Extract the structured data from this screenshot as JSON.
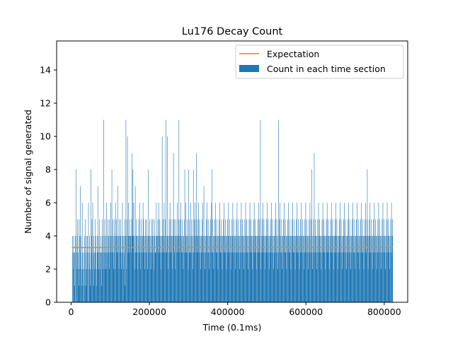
{
  "chart_data": {
    "type": "bar",
    "title": "Lu176 Decay Count",
    "xlabel": "Time (0.1ms)",
    "ylabel": "Number of signal generated",
    "xlim": [
      -37000,
      860000
    ],
    "ylim": [
      0,
      15.75
    ],
    "xticks": [
      0,
      200000,
      400000,
      600000,
      800000
    ],
    "yticks": [
      0,
      2,
      4,
      6,
      8,
      10,
      12,
      14
    ],
    "xtick_labels": [
      "0",
      "200000",
      "400000",
      "600000",
      "800000"
    ],
    "ytick_labels": [
      "0",
      "2",
      "4",
      "6",
      "8",
      "10",
      "12",
      "14"
    ],
    "grid": false,
    "legend": {
      "position": "top-right",
      "entries": [
        "Expectation",
        "Count in each time section"
      ]
    },
    "series": [
      {
        "name": "Count in each time section",
        "type": "bar",
        "color": "#1f77b4",
        "bin_width": 1000,
        "x_start": 3000,
        "x_end": 822000,
        "values": [
          4,
          3,
          2,
          4,
          3,
          1,
          3,
          4,
          0,
          8,
          3,
          2,
          4,
          5,
          2,
          3,
          1,
          5,
          4,
          2,
          7,
          3,
          4,
          2,
          1,
          6,
          3,
          2,
          0,
          3,
          1,
          4,
          2,
          5,
          3,
          1,
          4,
          2,
          4,
          3,
          0,
          6,
          2,
          3,
          4,
          1,
          2,
          8,
          3,
          4,
          5,
          2,
          6,
          3,
          1,
          4,
          3,
          2,
          5,
          3,
          4,
          2,
          1,
          3,
          4,
          7,
          3,
          2,
          4,
          5,
          3,
          2,
          3,
          4,
          1,
          3,
          5,
          4,
          2,
          3,
          11,
          4,
          3,
          5,
          2,
          4,
          3,
          6,
          2,
          3,
          4,
          5,
          3,
          4,
          2,
          5,
          3,
          4,
          6,
          4,
          3,
          8,
          4,
          5,
          3,
          2,
          4,
          5,
          3,
          4,
          2,
          6,
          4,
          5,
          3,
          4,
          7,
          3,
          4,
          2,
          5,
          4,
          3,
          4,
          5,
          2,
          3,
          4,
          6,
          3,
          4,
          2,
          4,
          3,
          5,
          1,
          4,
          3,
          2,
          4,
          5,
          10,
          3,
          4,
          6,
          4,
          3,
          5,
          4,
          4,
          4,
          3,
          5,
          9,
          4,
          8,
          4,
          6,
          3,
          4,
          2,
          7,
          3,
          4,
          5,
          3,
          4,
          2,
          4,
          3,
          5,
          4,
          6,
          3,
          4,
          2,
          5,
          3,
          4,
          3,
          4,
          6,
          5,
          3,
          4,
          2,
          4,
          5,
          3,
          4,
          5,
          3,
          4,
          2,
          6,
          4,
          3,
          4,
          5,
          4,
          3,
          2,
          4,
          5,
          3,
          4,
          5,
          3,
          4,
          2,
          5,
          4,
          3,
          3,
          4,
          6,
          4,
          3,
          4,
          5,
          4,
          6,
          3,
          4,
          5,
          3,
          4,
          2,
          4,
          3,
          10,
          4,
          5,
          3,
          4,
          6,
          3,
          4,
          5,
          3,
          11,
          4,
          3,
          5,
          4,
          2,
          4,
          3,
          5,
          4,
          6,
          3,
          4,
          5,
          3,
          4,
          2,
          4,
          5,
          3,
          4,
          5,
          3,
          4,
          2,
          5,
          4,
          3,
          4,
          6,
          3,
          4,
          5,
          11,
          4,
          3,
          5,
          4,
          6,
          3,
          4,
          5,
          3,
          4,
          2,
          4,
          3,
          5,
          4,
          3,
          4,
          6,
          3,
          4,
          5,
          3,
          4,
          2,
          4,
          3,
          5,
          3,
          4,
          6,
          3,
          4,
          5,
          3,
          4,
          2,
          8,
          3,
          5,
          4,
          6,
          3,
          4,
          5,
          9,
          4,
          3,
          5,
          4,
          6,
          3,
          4,
          5,
          3,
          4,
          2,
          4,
          3,
          5,
          4,
          6,
          3,
          4,
          7,
          3,
          4,
          2,
          4,
          3,
          5,
          4,
          6,
          3,
          4,
          5,
          3,
          4,
          2,
          4,
          3,
          5,
          4,
          6,
          3,
          8,
          5,
          3,
          4,
          2,
          4,
          3,
          5,
          4,
          6,
          3,
          4,
          5,
          3,
          4,
          2,
          4,
          3,
          5,
          4,
          6,
          3,
          4,
          5,
          3,
          4,
          2,
          4,
          3,
          5,
          4,
          6,
          3,
          4,
          5,
          3,
          4,
          2,
          4,
          3,
          5,
          4,
          6,
          3,
          4,
          5,
          3,
          4,
          2,
          4,
          3,
          5,
          4,
          6,
          3,
          4,
          5,
          3,
          4,
          2,
          4,
          3,
          5,
          4,
          6,
          3,
          4,
          5,
          3,
          4,
          2,
          4,
          3,
          5,
          4,
          6,
          3,
          4,
          5,
          3,
          4,
          2,
          4,
          3,
          5,
          4,
          6,
          3,
          4,
          5,
          3,
          4,
          2,
          4,
          3,
          5,
          4,
          6,
          3,
          4,
          5,
          3,
          4,
          2,
          4,
          3,
          5,
          4,
          6,
          3,
          4,
          5,
          3,
          4,
          2,
          4,
          3,
          5,
          4,
          6,
          3,
          4,
          5,
          3,
          4,
          2,
          4,
          3,
          5,
          4,
          6,
          3,
          4,
          5,
          3,
          4,
          2,
          4,
          3,
          5,
          4,
          6,
          3,
          4,
          5,
          3,
          4,
          2,
          4,
          3,
          5,
          4,
          6,
          3,
          4,
          5,
          3,
          4,
          2,
          4,
          3,
          5,
          4,
          6,
          3,
          4,
          5,
          3,
          4,
          2,
          4,
          3,
          5,
          4,
          6,
          3,
          4,
          5,
          3,
          4,
          2,
          4,
          3,
          5,
          4,
          6,
          3,
          4,
          5,
          3,
          4,
          2,
          4,
          3,
          5,
          4,
          6,
          3,
          4,
          5,
          3,
          4,
          2,
          4,
          3,
          5,
          4,
          6,
          3,
          4,
          5,
          3,
          4,
          2,
          4,
          3,
          5,
          4,
          6,
          3,
          4,
          5,
          3,
          4,
          2,
          4,
          3,
          5,
          4,
          6,
          3,
          4,
          5,
          3,
          4,
          2,
          4,
          3,
          5,
          4,
          6,
          3,
          4,
          5,
          3,
          4,
          2,
          4,
          3,
          5,
          4,
          6,
          3,
          4,
          5,
          3,
          4,
          2,
          4,
          3,
          5,
          4,
          6,
          3,
          4,
          5,
          3,
          4,
          2,
          4,
          3,
          5,
          4,
          6,
          3,
          4,
          5,
          3,
          4,
          2,
          4,
          3,
          5,
          4,
          6,
          3,
          4,
          5,
          3,
          4,
          2,
          4,
          3,
          5,
          4,
          6,
          3,
          4,
          5,
          3,
          4,
          2,
          4,
          3,
          5,
          4,
          6,
          3,
          4,
          5,
          3,
          4,
          2,
          4,
          3,
          5,
          4,
          6,
          3,
          4,
          5,
          3,
          4,
          2,
          4,
          3,
          5,
          4,
          6,
          3,
          4,
          5,
          3,
          4,
          2,
          4,
          3,
          5,
          4,
          6,
          3,
          4,
          5,
          3,
          4,
          2,
          4,
          3,
          5,
          4,
          6,
          3,
          4,
          5,
          3,
          4,
          2,
          4,
          3,
          5,
          4,
          6,
          3,
          4,
          5,
          3,
          4,
          2,
          4,
          3,
          5,
          4,
          6,
          3,
          4,
          5,
          3,
          4,
          2,
          4,
          3,
          5,
          4,
          6,
          3,
          4,
          5,
          3,
          4,
          2,
          4,
          3,
          5,
          4,
          6,
          3,
          4,
          5,
          3,
          4,
          2,
          4,
          3,
          5,
          4,
          6,
          3,
          4,
          5,
          3,
          4,
          2,
          4,
          3,
          5,
          4,
          6,
          3,
          4,
          5,
          3,
          4,
          2,
          4,
          3,
          5,
          4,
          6,
          3,
          4,
          5,
          3,
          4,
          2,
          4,
          3,
          5,
          4,
          6,
          3,
          4,
          5,
          3,
          4,
          2,
          4,
          3,
          5,
          4,
          6,
          3,
          4,
          5,
          3,
          4,
          2,
          4,
          3,
          5,
          4,
          6,
          3,
          4,
          5
        ]
      },
      {
        "name": "Expectation",
        "type": "line",
        "color": "#ff7f0e",
        "x": [
          3000,
          822000
        ],
        "y": [
          3.3,
          3.3
        ]
      }
    ],
    "peaks": [
      {
        "x": 140000,
        "y": 11
      },
      {
        "x": 197000,
        "y": 8
      },
      {
        "x": 246000,
        "y": 10
      },
      {
        "x": 262000,
        "y": 9
      },
      {
        "x": 290000,
        "y": 8
      },
      {
        "x": 300000,
        "y": 8
      },
      {
        "x": 484000,
        "y": 11
      },
      {
        "x": 530000,
        "y": 11
      },
      {
        "x": 615000,
        "y": 8
      },
      {
        "x": 621000,
        "y": 9
      },
      {
        "x": 757000,
        "y": 8
      }
    ]
  }
}
